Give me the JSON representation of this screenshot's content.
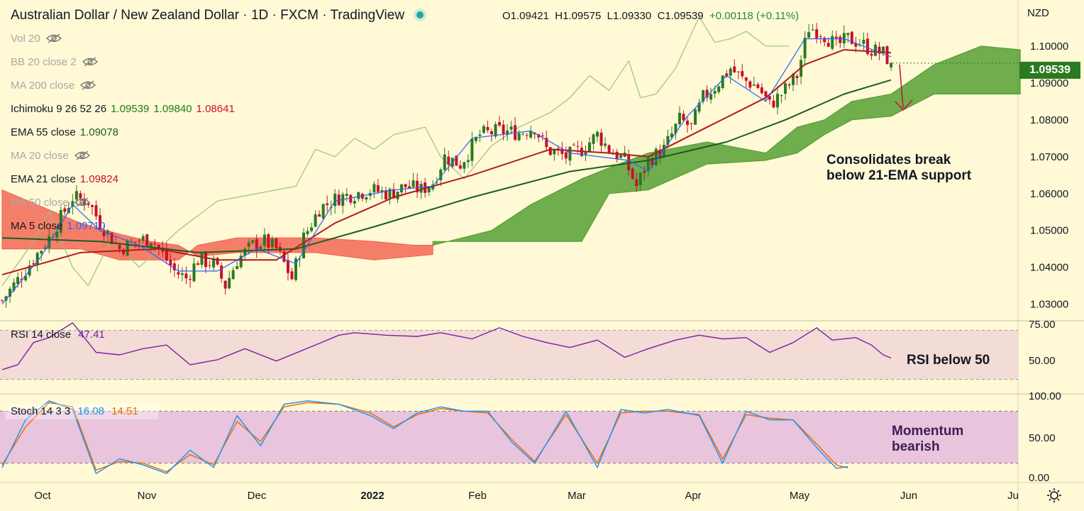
{
  "header": {
    "title": "Australian Dollar / New Zealand Dollar · 1D · FXCM · TradingView",
    "ohlc": {
      "o": "O1.09421",
      "h": "H1.09575",
      "l": "L1.09330",
      "c": "C1.09539",
      "chg": "+0.00118 (+0.11%)"
    }
  },
  "currency": "NZD",
  "last_price": "1.09539",
  "legend": [
    {
      "label": "Vol 20",
      "value": "",
      "hidden": true
    },
    {
      "label": "BB 20 close 2",
      "value": "",
      "hidden": true
    },
    {
      "label": "MA 200 close",
      "value": "",
      "hidden": true
    },
    {
      "label": "Ichimoku 9 26 52 26",
      "values": [
        "1.09539",
        "1.09840",
        "1.08641"
      ],
      "hidden": false
    },
    {
      "label": "EMA 55 close",
      "value": "1.09078",
      "hidden": false
    },
    {
      "label": "MA 20 close",
      "value": "",
      "hidden": true
    },
    {
      "label": "EMA 21 close",
      "value": "1.09824",
      "hidden": false
    },
    {
      "label": "MA 50 close",
      "value": "",
      "hidden": true
    },
    {
      "label": "MA 5 close",
      "value": "1.09710",
      "hidden": false
    }
  ],
  "rsi_legend": {
    "label": "RSI 14 close",
    "value": "47.41"
  },
  "stoch_legend": {
    "label": "Stoch 14 3 3",
    "k": "16.08",
    "d": "14.51"
  },
  "annotations": {
    "price": [
      "Consolidates break",
      "below 21-EMA support"
    ],
    "rsi": "RSI below 50",
    "stoch": [
      "Momentum",
      "bearish"
    ]
  },
  "colors": {
    "up": "#2b7a1f",
    "down": "#c8102e",
    "ema21": "#b31b1b",
    "ema55": "#1b5e20",
    "ma5": "#2962ff",
    "lagging": "#9cbf7a",
    "cloud_bull": "#4c9a2a",
    "cloud_bear": "#f25f4c",
    "rsi": "#7b1fa2",
    "stoch_k": "#2196f3",
    "stoch_d": "#ef6c00",
    "rsi_band": "#f3dbd6",
    "stoch_band": "#e8c5dc"
  },
  "chart_data": [
    {
      "type": "candlestick",
      "title": "Australian Dollar / New Zealand Dollar · 1D · FXCM",
      "x_labels": [
        "Oct",
        "Nov",
        "Dec",
        "2022",
        "Feb",
        "Mar",
        "Apr",
        "May",
        "Jun",
        "Ju"
      ],
      "y_ticks": [
        "1.10000",
        "1.09000",
        "1.08000",
        "1.07000",
        "1.06000",
        "1.05000",
        "1.04000",
        "1.03000"
      ],
      "ylim": [
        1.0255,
        1.1125
      ],
      "close_path": [
        [
          0,
          1.031
        ],
        [
          5,
          1.038
        ],
        [
          12,
          1.048
        ],
        [
          18,
          1.059
        ],
        [
          22,
          1.058
        ],
        [
          25,
          1.052
        ],
        [
          30,
          1.045
        ],
        [
          34,
          1.047
        ],
        [
          38,
          1.048
        ],
        [
          44,
          1.039
        ],
        [
          47,
          1.037
        ],
        [
          50,
          1.042
        ],
        [
          54,
          1.041
        ],
        [
          57,
          1.035
        ],
        [
          60,
          1.042
        ],
        [
          64,
          1.046
        ],
        [
          67,
          1.047
        ],
        [
          70,
          1.045
        ],
        [
          74,
          1.037
        ],
        [
          77,
          1.048
        ],
        [
          81,
          1.056
        ],
        [
          86,
          1.059
        ],
        [
          90,
          1.06
        ],
        [
          94,
          1.061
        ],
        [
          99,
          1.06
        ],
        [
          103,
          1.062
        ],
        [
          107,
          1.061
        ],
        [
          110,
          1.063
        ],
        [
          113,
          1.07
        ],
        [
          117,
          1.068
        ],
        [
          122,
          1.076
        ],
        [
          127,
          1.077
        ],
        [
          132,
          1.0765
        ],
        [
          136,
          1.078
        ],
        [
          139,
          1.072
        ],
        [
          144,
          1.07
        ],
        [
          148,
          1.072
        ],
        [
          152,
          1.076
        ],
        [
          155,
          1.072
        ],
        [
          159,
          1.069
        ],
        [
          162,
          1.062
        ],
        [
          165,
          1.069
        ],
        [
          169,
          1.072
        ],
        [
          173,
          1.08
        ],
        [
          176,
          1.078
        ],
        [
          179,
          1.086
        ],
        [
          182,
          1.089
        ],
        [
          186,
          1.094
        ],
        [
          189,
          1.091
        ],
        [
          193,
          1.089
        ],
        [
          196,
          1.084
        ],
        [
          199,
          1.087
        ],
        [
          203,
          1.092
        ],
        [
          206,
          1.105
        ],
        [
          209,
          1.104
        ],
        [
          213,
          1.1
        ],
        [
          216,
          1.102
        ],
        [
          219,
          1.101
        ],
        [
          222,
          1.099
        ],
        [
          225,
          1.098
        ],
        [
          227,
          1.0954
        ]
      ],
      "ema21": [
        [
          0,
          1.038
        ],
        [
          20,
          1.044
        ],
        [
          40,
          1.045
        ],
        [
          55,
          1.042
        ],
        [
          70,
          1.042
        ],
        [
          85,
          1.052
        ],
        [
          100,
          1.059
        ],
        [
          120,
          1.065
        ],
        [
          140,
          1.072
        ],
        [
          155,
          1.071
        ],
        [
          165,
          1.07
        ],
        [
          180,
          1.078
        ],
        [
          195,
          1.086
        ],
        [
          205,
          1.095
        ],
        [
          215,
          1.099
        ],
        [
          227,
          1.0982
        ]
      ],
      "ema55": [
        [
          0,
          1.048
        ],
        [
          25,
          1.047
        ],
        [
          50,
          1.044
        ],
        [
          75,
          1.045
        ],
        [
          95,
          1.051
        ],
        [
          120,
          1.059
        ],
        [
          145,
          1.066
        ],
        [
          165,
          1.069
        ],
        [
          185,
          1.074
        ],
        [
          200,
          1.08
        ],
        [
          215,
          1.087
        ],
        [
          227,
          1.0908
        ]
      ],
      "ma5": [
        [
          0,
          1.03
        ],
        [
          10,
          1.043
        ],
        [
          18,
          1.057
        ],
        [
          25,
          1.05
        ],
        [
          35,
          1.046
        ],
        [
          45,
          1.039
        ],
        [
          55,
          1.039
        ],
        [
          65,
          1.045
        ],
        [
          75,
          1.041
        ],
        [
          85,
          1.058
        ],
        [
          100,
          1.061
        ],
        [
          110,
          1.062
        ],
        [
          120,
          1.075
        ],
        [
          135,
          1.077
        ],
        [
          145,
          1.071
        ],
        [
          160,
          1.069
        ],
        [
          165,
          1.066
        ],
        [
          175,
          1.081
        ],
        [
          185,
          1.092
        ],
        [
          195,
          1.085
        ],
        [
          205,
          1.102
        ],
        [
          215,
          1.102
        ],
        [
          227,
          1.0971
        ]
      ],
      "lagging_span": [
        [
          0,
          1.035
        ],
        [
          8,
          1.047
        ],
        [
          12,
          1.055
        ],
        [
          18,
          1.04
        ],
        [
          22,
          1.035
        ],
        [
          28,
          1.048
        ],
        [
          35,
          1.04
        ],
        [
          45,
          1.05
        ],
        [
          55,
          1.058
        ],
        [
          65,
          1.06
        ],
        [
          75,
          1.062
        ],
        [
          80,
          1.072
        ],
        [
          85,
          1.07
        ],
        [
          90,
          1.075
        ],
        [
          95,
          1.072
        ],
        [
          100,
          1.076
        ],
        [
          108,
          1.078
        ],
        [
          112,
          1.07
        ],
        [
          118,
          1.064
        ],
        [
          125,
          1.073
        ],
        [
          132,
          1.078
        ],
        [
          140,
          1.082
        ],
        [
          145,
          1.086
        ],
        [
          150,
          1.092
        ],
        [
          155,
          1.088
        ],
        [
          160,
          1.096
        ],
        [
          163,
          1.086
        ],
        [
          167,
          1.087
        ],
        [
          172,
          1.094
        ],
        [
          178,
          1.108
        ],
        [
          182,
          1.101
        ],
        [
          186,
          1.102
        ],
        [
          190,
          1.104
        ],
        [
          195,
          1.1
        ],
        [
          201,
          1.1
        ]
      ],
      "cloud_bear": [
        [
          0,
          1.061,
          1.045
        ],
        [
          20,
          1.052,
          1.045
        ],
        [
          30,
          1.049,
          1.042
        ],
        [
          38,
          1.047,
          1.042
        ],
        [
          45,
          1.046,
          1.042
        ],
        [
          50,
          1.043,
          1.046
        ],
        [
          60,
          1.044,
          1.048
        ],
        [
          80,
          1.044,
          1.048
        ],
        [
          95,
          1.042,
          1.047
        ],
        [
          105,
          1.043,
          1.046
        ],
        [
          110,
          1.0435,
          1.046
        ]
      ],
      "cloud_bull": [
        [
          110,
          1.046,
          1.047
        ],
        [
          125,
          1.05,
          1.047
        ],
        [
          135,
          1.057,
          1.047
        ],
        [
          148,
          1.064,
          1.047
        ],
        [
          155,
          1.067,
          1.06
        ],
        [
          165,
          1.071,
          1.061
        ],
        [
          180,
          1.074,
          1.068
        ],
        [
          195,
          1.071,
          1.069
        ],
        [
          203,
          1.078,
          1.071
        ],
        [
          210,
          1.08,
          1.076
        ],
        [
          217,
          1.085,
          1.08
        ],
        [
          227,
          1.087,
          1.081
        ],
        [
          238,
          1.095,
          1.087
        ],
        [
          250,
          1.1,
          1.087
        ],
        [
          260,
          1.099,
          1.087
        ]
      ]
    },
    {
      "type": "line",
      "title": "RSI 14 close",
      "y_ticks": [
        "75.00",
        "50.00"
      ],
      "ylim": [
        20,
        80
      ],
      "band": [
        30,
        70
      ],
      "series": [
        {
          "name": "RSI 14 close",
          "values": [
            [
              0,
              38
            ],
            [
              4,
              42
            ],
            [
              8,
              60
            ],
            [
              12,
              64
            ],
            [
              18,
              76
            ],
            [
              24,
              52
            ],
            [
              30,
              50
            ],
            [
              36,
              55
            ],
            [
              42,
              58
            ],
            [
              48,
              42
            ],
            [
              55,
              46
            ],
            [
              62,
              55
            ],
            [
              70,
              45
            ],
            [
              80,
              58
            ],
            [
              86,
              66
            ],
            [
              90,
              68
            ],
            [
              98,
              66
            ],
            [
              106,
              65
            ],
            [
              112,
              68
            ],
            [
              120,
              63
            ],
            [
              127,
              72
            ],
            [
              133,
              65
            ],
            [
              139,
              60
            ],
            [
              145,
              56
            ],
            [
              152,
              62
            ],
            [
              159,
              48
            ],
            [
              165,
              55
            ],
            [
              172,
              62
            ],
            [
              178,
              66
            ],
            [
              184,
              63
            ],
            [
              190,
              64
            ],
            [
              196,
              52
            ],
            [
              202,
              60
            ],
            [
              208,
              72
            ],
            [
              212,
              62
            ],
            [
              218,
              64
            ],
            [
              222,
              58
            ],
            [
              225,
              50
            ],
            [
              227,
              47.4
            ]
          ]
        }
      ]
    },
    {
      "type": "line",
      "title": "Stoch 14 3 3",
      "y_ticks": [
        "100.00",
        "50.00",
        "0.00"
      ],
      "ylim": [
        0,
        100
      ],
      "band": [
        20,
        80
      ],
      "series": [
        {
          "name": "%K",
          "values": [
            [
              0,
              15
            ],
            [
              6,
              70
            ],
            [
              12,
              92
            ],
            [
              18,
              82
            ],
            [
              24,
              8
            ],
            [
              30,
              25
            ],
            [
              36,
              18
            ],
            [
              42,
              8
            ],
            [
              48,
              35
            ],
            [
              54,
              15
            ],
            [
              60,
              75
            ],
            [
              66,
              40
            ],
            [
              72,
              88
            ],
            [
              78,
              92
            ],
            [
              86,
              88
            ],
            [
              94,
              75
            ],
            [
              100,
              60
            ],
            [
              106,
              78
            ],
            [
              112,
              85
            ],
            [
              118,
              80
            ],
            [
              124,
              80
            ],
            [
              130,
              45
            ],
            [
              136,
              20
            ],
            [
              144,
              80
            ],
            [
              152,
              15
            ],
            [
              158,
              82
            ],
            [
              164,
              78
            ],
            [
              170,
              82
            ],
            [
              178,
              75
            ],
            [
              184,
              20
            ],
            [
              190,
              80
            ],
            [
              196,
              70
            ],
            [
              202,
              70
            ],
            [
              208,
              38
            ],
            [
              213,
              14
            ],
            [
              216,
              16.1
            ]
          ]
        },
        {
          "name": "%D",
          "values": [
            [
              0,
              18
            ],
            [
              6,
              62
            ],
            [
              12,
              90
            ],
            [
              18,
              85
            ],
            [
              24,
              12
            ],
            [
              30,
              22
            ],
            [
              36,
              20
            ],
            [
              42,
              10
            ],
            [
              48,
              30
            ],
            [
              54,
              18
            ],
            [
              60,
              68
            ],
            [
              66,
              45
            ],
            [
              72,
              85
            ],
            [
              78,
              90
            ],
            [
              86,
              88
            ],
            [
              94,
              78
            ],
            [
              100,
              62
            ],
            [
              106,
              76
            ],
            [
              112,
              83
            ],
            [
              118,
              80
            ],
            [
              124,
              78
            ],
            [
              130,
              48
            ],
            [
              136,
              22
            ],
            [
              144,
              76
            ],
            [
              152,
              20
            ],
            [
              158,
              78
            ],
            [
              164,
              80
            ],
            [
              170,
              80
            ],
            [
              178,
              76
            ],
            [
              184,
              25
            ],
            [
              190,
              76
            ],
            [
              196,
              72
            ],
            [
              202,
              70
            ],
            [
              208,
              42
            ],
            [
              213,
              18
            ],
            [
              216,
              14.5
            ]
          ]
        }
      ]
    }
  ]
}
